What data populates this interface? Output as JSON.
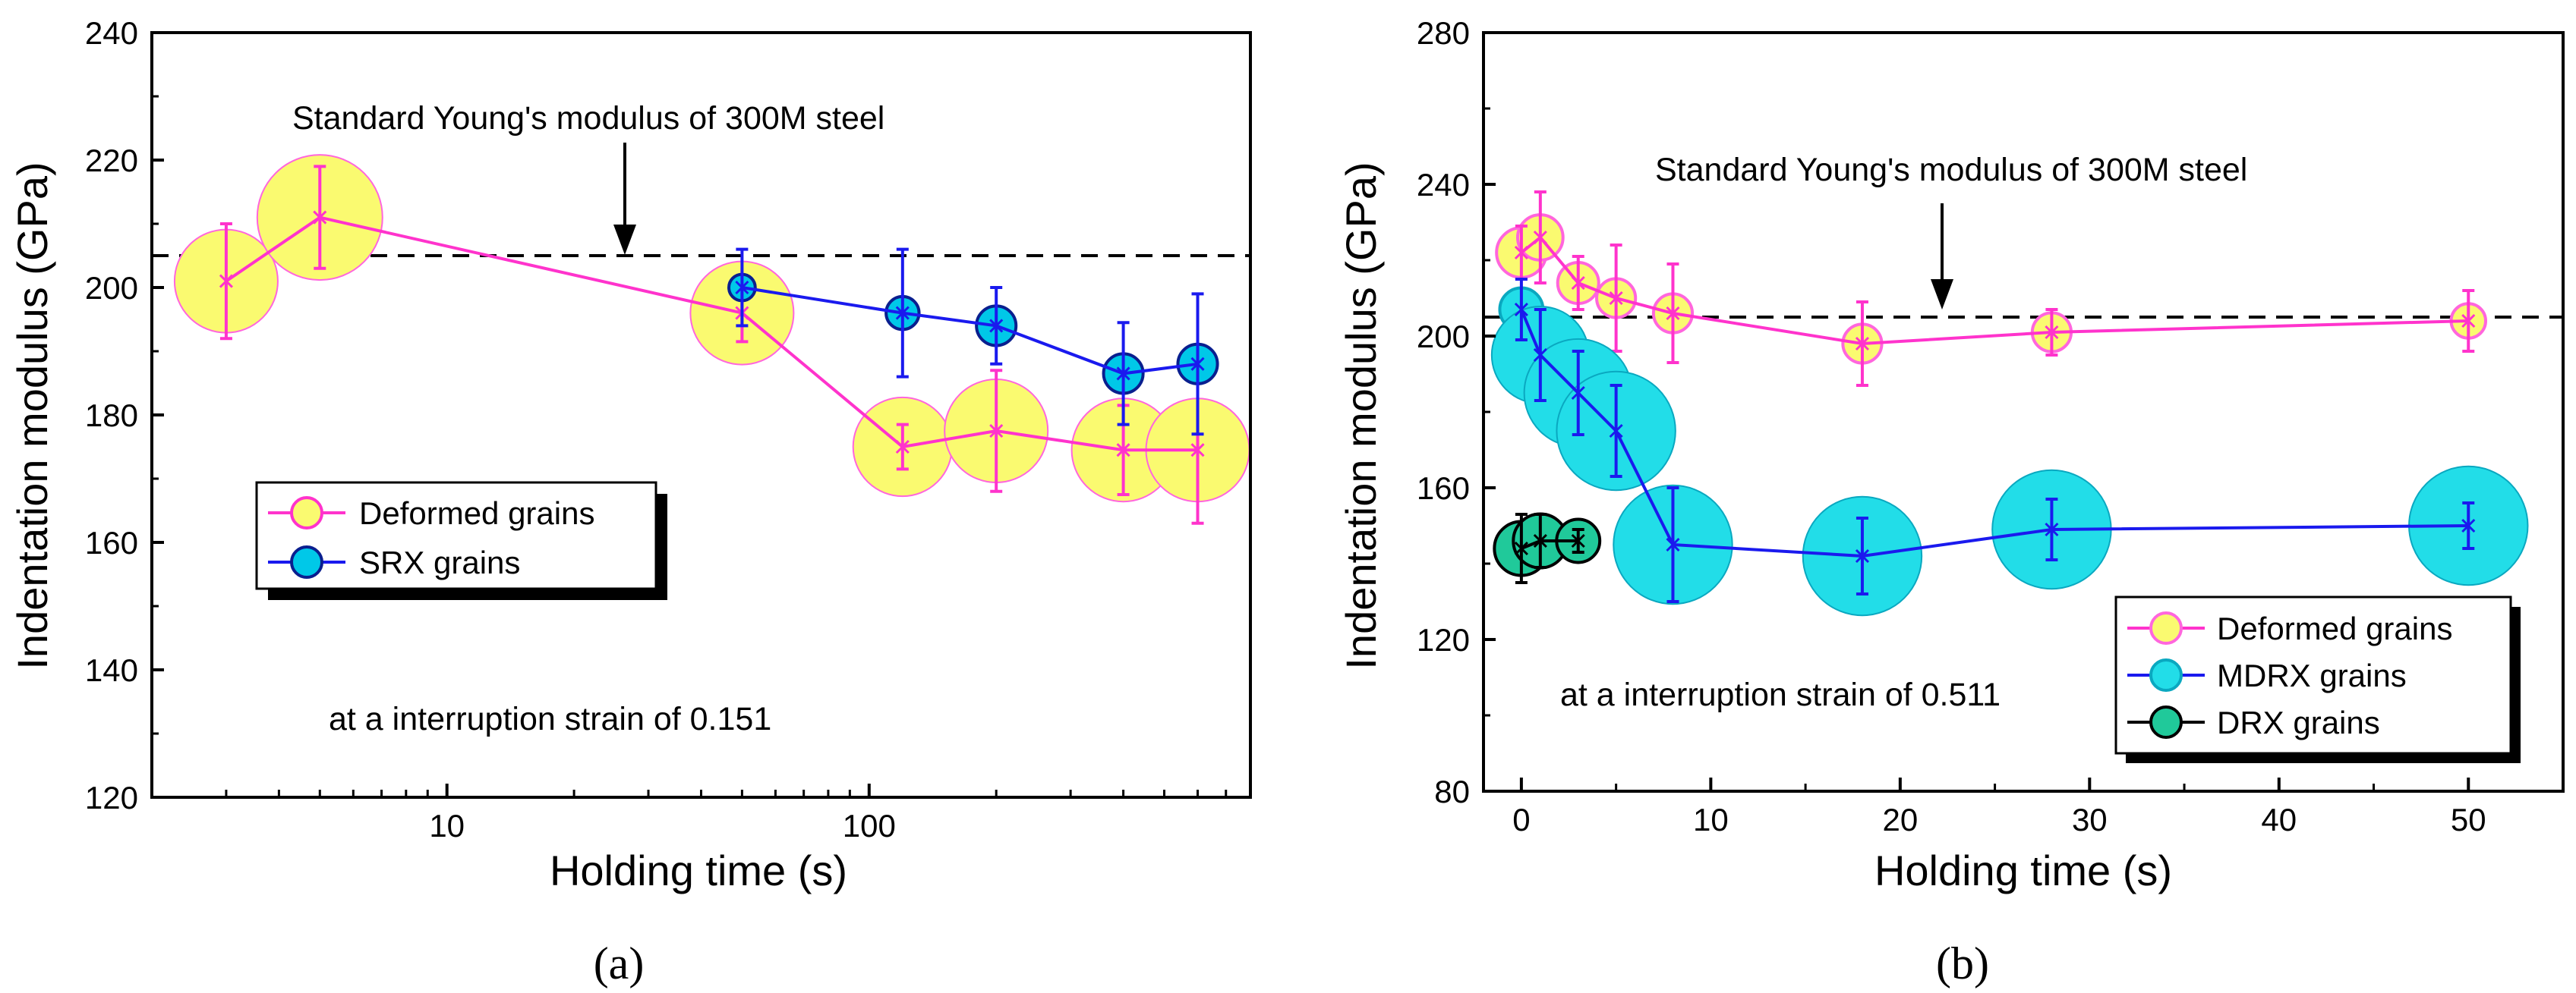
{
  "chart_data": [
    {
      "id": "a",
      "type": "scatter",
      "xscale": "log",
      "xlabel": "Holding time (s)",
      "ylabel": "Indentation modulus (GPa)",
      "xlim": [
        2,
        800
      ],
      "ylim": [
        120,
        240
      ],
      "xticks": [
        10,
        100
      ],
      "yticks": [
        120,
        140,
        160,
        180,
        200,
        220,
        240
      ],
      "reference_line": {
        "y": 205,
        "label": "Standard Young's modulus of 300M steel"
      },
      "annotation": "at a interruption strain of 0.151",
      "panel_label": "(a)",
      "legend_location": "center-left",
      "series": [
        {
          "name": "Deformed grains",
          "line_color": "#ff33cc",
          "marker_fill": "#fafa70",
          "marker_edge": "#ff66dd",
          "error_color": "#ff33cc",
          "x": [
            3,
            5,
            50,
            120,
            200,
            400,
            600
          ],
          "y": [
            201,
            211,
            196,
            175,
            177.5,
            174.5,
            174.5
          ],
          "err": [
            9,
            8,
            4.5,
            3.5,
            9.5,
            7,
            11.5
          ],
          "size": [
            0.047,
            0.057,
            0.047,
            0.045,
            0.047,
            0.047,
            0.047
          ]
        },
        {
          "name": "SRX grains",
          "line_color": "#1a1aee",
          "marker_fill": "#00c8e8",
          "marker_edge": "#0a1f8f",
          "error_color": "#1a1aee",
          "x": [
            50,
            120,
            200,
            400,
            600
          ],
          "y": [
            200,
            196,
            194,
            186.5,
            188
          ],
          "err": [
            6,
            10,
            6,
            8,
            11
          ],
          "size": [
            0.012,
            0.015,
            0.018,
            0.018,
            0.018
          ]
        }
      ]
    },
    {
      "id": "b",
      "type": "scatter",
      "xscale": "linear",
      "xlabel": "Holding time (s)",
      "ylabel": "Indentation modulus (GPa)",
      "xlim": [
        -2,
        55
      ],
      "ylim": [
        80,
        280
      ],
      "xticks": [
        0,
        10,
        20,
        30,
        40,
        50
      ],
      "yticks": [
        80,
        120,
        160,
        200,
        240,
        280
      ],
      "reference_line": {
        "y": 205,
        "label": "Standard Young's modulus of 300M steel"
      },
      "annotation": "at a interruption strain of 0.511",
      "panel_label": "(b)",
      "legend_location": "bottom-right",
      "series": [
        {
          "name": "Deformed grains",
          "line_color": "#ff33cc",
          "marker_fill": "#fafa70",
          "marker_edge": "#ff66dd",
          "error_color": "#ff33cc",
          "x": [
            0,
            1,
            3,
            5,
            8,
            18,
            28,
            50
          ],
          "y": [
            222,
            226,
            214,
            210,
            206,
            198,
            201,
            204
          ],
          "err": [
            7,
            12,
            7,
            14,
            13,
            11,
            6,
            8
          ],
          "size": [
            0.023,
            0.021,
            0.019,
            0.018,
            0.018,
            0.018,
            0.018,
            0.016
          ]
        },
        {
          "name": "MDRX grains",
          "line_color": "#1a1aee",
          "marker_fill": "#22dde8",
          "marker_edge": "#0aa8c0",
          "error_color": "#1a1aee",
          "x": [
            0,
            1,
            3,
            5,
            8,
            18,
            28,
            50
          ],
          "y": [
            207,
            195,
            185,
            175,
            145,
            142,
            149,
            150
          ],
          "err": [
            8,
            12,
            11,
            12,
            15,
            10,
            8,
            6
          ],
          "size": [
            0.02,
            0.045,
            0.05,
            0.055,
            0.055,
            0.055,
            0.055,
            0.055
          ]
        },
        {
          "name": "DRX grains",
          "line_color": "#000000",
          "marker_fill": "#20c99a",
          "marker_edge": "#000000",
          "error_color": "#000000",
          "x": [
            0,
            1,
            3
          ],
          "y": [
            144,
            146,
            146
          ],
          "err": [
            9,
            7,
            3
          ],
          "size": [
            0.025,
            0.025,
            0.02
          ]
        }
      ]
    }
  ]
}
